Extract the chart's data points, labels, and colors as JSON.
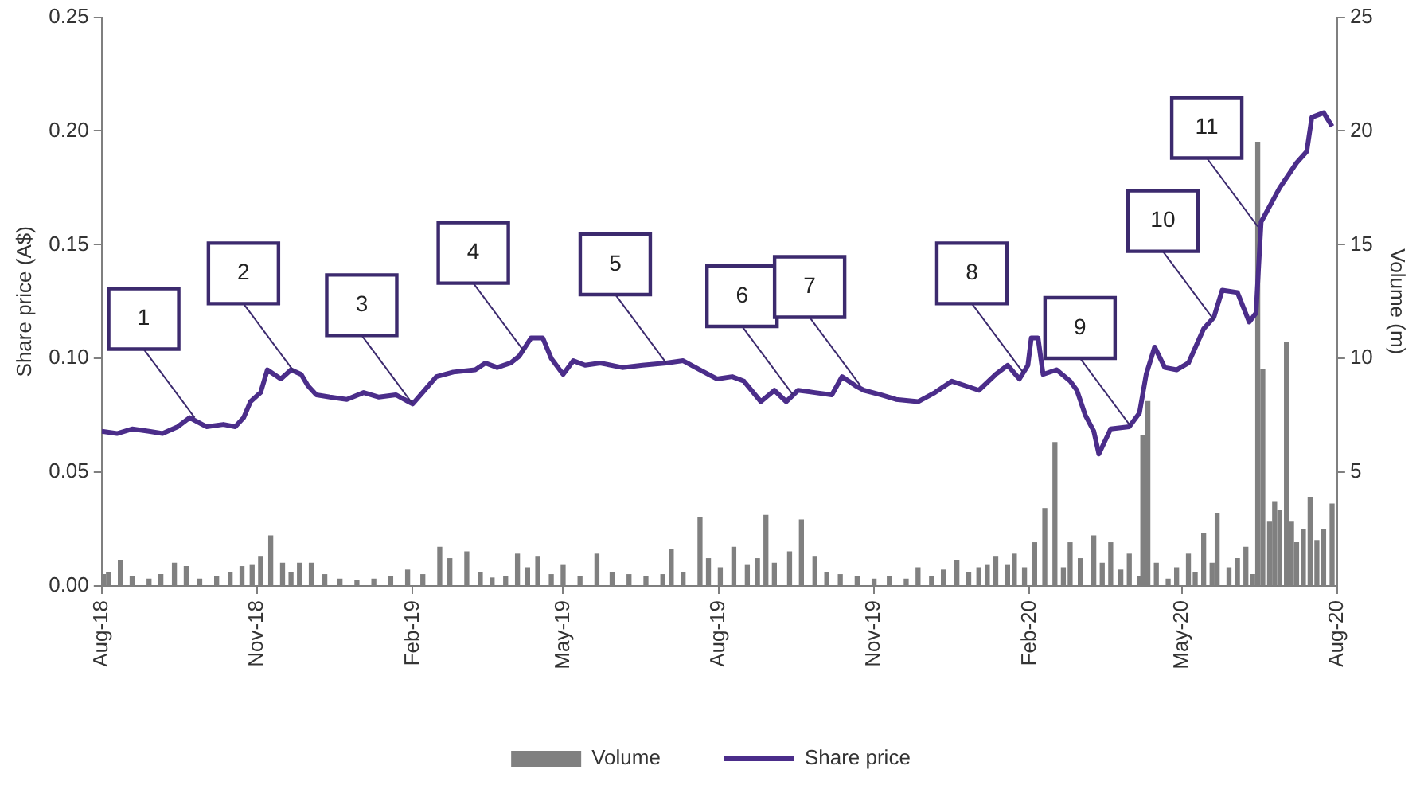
{
  "chart_data": {
    "type": "bar",
    "ylabel": "Share price (A$)",
    "y2label": "Volume (m)",
    "xlim": [
      "2018-08-01",
      "2020-08-01"
    ],
    "xticks": [
      {
        "value": "2018-08-01",
        "label": "Aug-18"
      },
      {
        "value": "2018-11-01",
        "label": "Nov-18"
      },
      {
        "value": "2019-02-01",
        "label": "Feb-19"
      },
      {
        "value": "2019-05-01",
        "label": "May-19"
      },
      {
        "value": "2019-08-01",
        "label": "Aug-19"
      },
      {
        "value": "2019-11-01",
        "label": "Nov-19"
      },
      {
        "value": "2020-02-01",
        "label": "Feb-20"
      },
      {
        "value": "2020-05-01",
        "label": "May-20"
      },
      {
        "value": "2020-08-01",
        "label": "Aug-20"
      }
    ],
    "ylim": [
      0,
      0.25
    ],
    "yticks": [
      {
        "value": 0,
        "label": "0.00"
      },
      {
        "value": 0.05,
        "label": "0.05"
      },
      {
        "value": 0.1,
        "label": "0.10"
      },
      {
        "value": 0.15,
        "label": "0.15"
      },
      {
        "value": 0.2,
        "label": "0.20"
      },
      {
        "value": 0.25,
        "label": "0.25"
      }
    ],
    "y2lim": [
      0,
      25
    ],
    "y2ticks": [
      5,
      10,
      15,
      20,
      25
    ],
    "grid": false,
    "legend": "bottom",
    "marker": "none",
    "line_style": "solid",
    "series": [
      {
        "name": "Volume",
        "axis": "y2",
        "color": "#808080",
        "x": [
          "2018-08-02",
          "2018-08-05",
          "2018-08-12",
          "2018-08-19",
          "2018-08-29",
          "2018-09-05",
          "2018-09-13",
          "2018-09-20",
          "2018-09-28",
          "2018-10-08",
          "2018-10-16",
          "2018-10-23",
          "2018-10-29",
          "2018-11-03",
          "2018-11-09",
          "2018-11-16",
          "2018-11-21",
          "2018-11-26",
          "2018-12-03",
          "2018-12-11",
          "2018-12-20",
          "2018-12-30",
          "2019-01-09",
          "2019-01-19",
          "2019-01-29",
          "2019-02-07",
          "2019-02-17",
          "2019-02-23",
          "2019-03-05",
          "2019-03-13",
          "2019-03-20",
          "2019-03-28",
          "2019-04-04",
          "2019-04-10",
          "2019-04-16",
          "2019-04-24",
          "2019-05-01",
          "2019-05-11",
          "2019-05-21",
          "2019-05-30",
          "2019-06-09",
          "2019-06-19",
          "2019-06-29",
          "2019-07-04",
          "2019-07-11",
          "2019-07-21",
          "2019-07-26",
          "2019-08-02",
          "2019-08-10",
          "2019-08-18",
          "2019-08-24",
          "2019-08-29",
          "2019-09-03",
          "2019-09-12",
          "2019-09-19",
          "2019-09-27",
          "2019-10-04",
          "2019-10-12",
          "2019-10-22",
          "2019-11-01",
          "2019-11-10",
          "2019-11-20",
          "2019-11-27",
          "2019-12-05",
          "2019-12-12",
          "2019-12-20",
          "2019-12-27",
          "2020-01-02",
          "2020-01-07",
          "2020-01-12",
          "2020-01-19",
          "2020-01-23",
          "2020-01-29",
          "2020-02-04",
          "2020-02-10",
          "2020-02-16",
          "2020-02-21",
          "2020-02-25",
          "2020-03-02",
          "2020-03-10",
          "2020-03-15",
          "2020-03-20",
          "2020-03-26",
          "2020-03-31",
          "2020-04-06",
          "2020-04-08",
          "2020-04-11",
          "2020-04-16",
          "2020-04-23",
          "2020-04-28",
          "2020-05-05",
          "2020-05-09",
          "2020-05-14",
          "2020-05-19",
          "2020-05-22",
          "2020-05-29",
          "2020-06-03",
          "2020-06-08",
          "2020-06-12",
          "2020-06-15",
          "2020-06-18",
          "2020-06-22",
          "2020-06-25",
          "2020-06-28",
          "2020-07-02",
          "2020-07-05",
          "2020-07-08",
          "2020-07-12",
          "2020-07-16",
          "2020-07-20",
          "2020-07-24",
          "2020-07-29"
        ],
        "values": [
          0.5,
          0.6,
          1.1,
          0.4,
          0.3,
          0.5,
          1.0,
          0.85,
          0.3,
          0.4,
          0.6,
          0.85,
          0.9,
          1.3,
          2.2,
          1.0,
          0.6,
          1.0,
          1.0,
          0.5,
          0.3,
          0.25,
          0.3,
          0.4,
          0.7,
          0.5,
          1.7,
          1.2,
          1.5,
          0.6,
          0.35,
          0.4,
          1.4,
          0.8,
          1.3,
          0.5,
          0.9,
          0.4,
          1.4,
          0.6,
          0.5,
          0.4,
          0.5,
          1.6,
          0.6,
          3.0,
          1.2,
          0.8,
          1.7,
          0.9,
          1.2,
          3.1,
          1.0,
          1.5,
          2.9,
          1.3,
          0.6,
          0.5,
          0.4,
          0.3,
          0.4,
          0.3,
          0.8,
          0.4,
          0.7,
          1.1,
          0.6,
          0.8,
          0.9,
          1.3,
          0.9,
          1.4,
          0.8,
          1.9,
          3.4,
          6.3,
          0.8,
          1.9,
          1.2,
          2.2,
          1.0,
          1.9,
          0.7,
          1.4,
          0.4,
          6.6,
          8.1,
          1.0,
          0.3,
          0.8,
          1.4,
          0.6,
          2.3,
          1.0,
          3.2,
          0.8,
          1.2,
          1.7,
          0.5,
          19.5,
          9.5,
          2.8,
          3.7,
          3.3,
          10.7,
          2.8,
          1.9,
          2.5,
          3.9,
          2.0,
          2.5,
          3.6
        ]
      },
      {
        "name": "Share price",
        "type": "line",
        "color": "#4b2d8a",
        "x": [
          "2018-08-01",
          "2018-08-10",
          "2018-08-19",
          "2018-08-29",
          "2018-09-06",
          "2018-09-15",
          "2018-09-22",
          "2018-10-02",
          "2018-10-12",
          "2018-10-19",
          "2018-10-24",
          "2018-10-28",
          "2018-11-03",
          "2018-11-07",
          "2018-11-15",
          "2018-11-21",
          "2018-11-27",
          "2018-12-01",
          "2018-12-06",
          "2018-12-14",
          "2018-12-24",
          "2019-01-03",
          "2019-01-12",
          "2019-01-22",
          "2019-02-01",
          "2019-02-08",
          "2019-02-15",
          "2019-02-25",
          "2019-03-10",
          "2019-03-16",
          "2019-03-23",
          "2019-03-31",
          "2019-04-05",
          "2019-04-12",
          "2019-04-19",
          "2019-04-24",
          "2019-05-01",
          "2019-05-07",
          "2019-05-14",
          "2019-05-23",
          "2019-06-05",
          "2019-06-17",
          "2019-07-01",
          "2019-07-11",
          "2019-07-21",
          "2019-07-31",
          "2019-08-09",
          "2019-08-16",
          "2019-08-26",
          "2019-09-03",
          "2019-09-10",
          "2019-09-17",
          "2019-09-27",
          "2019-10-07",
          "2019-10-13",
          "2019-10-21",
          "2019-10-26",
          "2019-11-05",
          "2019-11-14",
          "2019-11-27",
          "2019-12-07",
          "2019-12-17",
          "2019-12-25",
          "2020-01-02",
          "2020-01-12",
          "2020-01-19",
          "2020-01-26",
          "2020-01-31",
          "2020-02-02",
          "2020-02-06",
          "2020-02-09",
          "2020-02-17",
          "2020-02-25",
          "2020-02-29",
          "2020-03-05",
          "2020-03-10",
          "2020-03-13",
          "2020-03-20",
          "2020-03-31",
          "2020-04-06",
          "2020-04-10",
          "2020-04-15",
          "2020-04-21",
          "2020-04-28",
          "2020-05-05",
          "2020-05-14",
          "2020-05-20",
          "2020-05-25",
          "2020-06-03",
          "2020-06-10",
          "2020-06-14",
          "2020-06-17",
          "2020-06-28",
          "2020-07-08",
          "2020-07-14",
          "2020-07-17",
          "2020-07-24",
          "2020-07-29"
        ],
        "values": [
          0.068,
          0.067,
          0.069,
          0.068,
          0.067,
          0.07,
          0.074,
          0.07,
          0.071,
          0.07,
          0.074,
          0.081,
          0.085,
          0.095,
          0.091,
          0.095,
          0.093,
          0.088,
          0.084,
          0.083,
          0.082,
          0.085,
          0.083,
          0.084,
          0.08,
          0.086,
          0.092,
          0.094,
          0.095,
          0.098,
          0.096,
          0.098,
          0.101,
          0.109,
          0.109,
          0.1,
          0.093,
          0.099,
          0.097,
          0.098,
          0.096,
          0.097,
          0.098,
          0.099,
          0.095,
          0.091,
          0.092,
          0.09,
          0.081,
          0.086,
          0.081,
          0.086,
          0.085,
          0.084,
          0.092,
          0.088,
          0.086,
          0.084,
          0.082,
          0.081,
          0.085,
          0.09,
          0.088,
          0.086,
          0.093,
          0.097,
          0.091,
          0.097,
          0.109,
          0.109,
          0.093,
          0.095,
          0.09,
          0.086,
          0.075,
          0.068,
          0.058,
          0.069,
          0.07,
          0.076,
          0.093,
          0.105,
          0.096,
          0.095,
          0.098,
          0.113,
          0.118,
          0.13,
          0.129,
          0.116,
          0.12,
          0.16,
          0.175,
          0.186,
          0.191,
          0.206,
          0.208,
          0.202
        ]
      }
    ],
    "annotations": [
      {
        "text": "1",
        "x": "2018-09-25",
        "y": 0.074
      },
      {
        "text": "2",
        "x": "2018-11-23",
        "y": 0.094
      },
      {
        "text": "3",
        "x": "2019-02-01",
        "y": 0.08
      },
      {
        "text": "4",
        "x": "2019-04-08",
        "y": 0.103
      },
      {
        "text": "5",
        "x": "2019-07-01",
        "y": 0.098
      },
      {
        "text": "6",
        "x": "2019-09-14",
        "y": 0.084
      },
      {
        "text": "7",
        "x": "2019-10-24",
        "y": 0.088
      },
      {
        "text": "8",
        "x": "2020-01-28",
        "y": 0.094
      },
      {
        "text": "9",
        "x": "2020-04-01",
        "y": 0.07
      },
      {
        "text": "10",
        "x": "2020-05-20",
        "y": 0.117
      },
      {
        "text": "11",
        "x": "2020-06-15",
        "y": 0.158
      }
    ]
  }
}
